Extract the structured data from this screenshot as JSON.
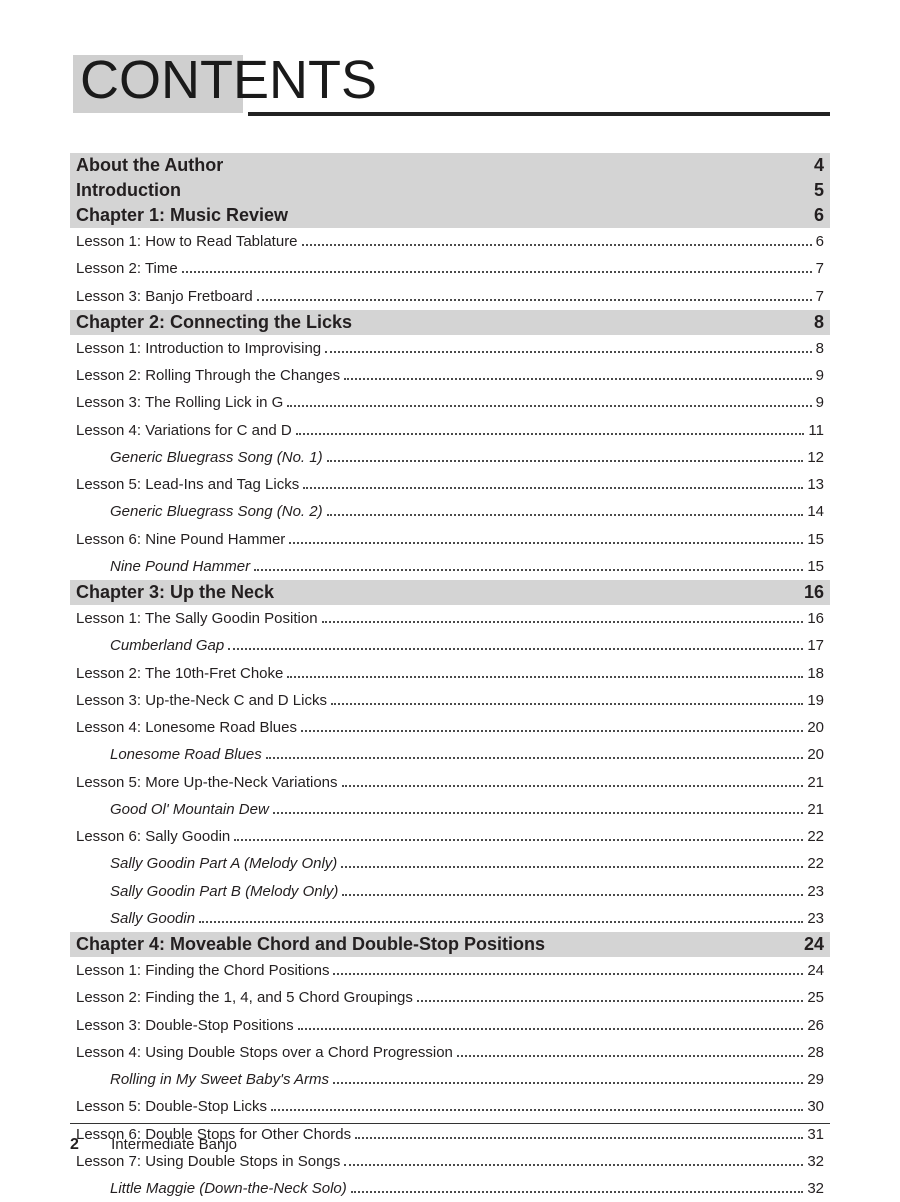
{
  "heading": "CONTENTS",
  "footer": {
    "page_number": "2",
    "book_title": "Intermediate Banjo"
  },
  "toc": [
    {
      "type": "section",
      "label": "About the Author",
      "page": "4"
    },
    {
      "type": "section",
      "label": "Introduction",
      "page": "5"
    },
    {
      "type": "section",
      "label": "Chapter 1: Music Review",
      "page": "6"
    },
    {
      "type": "entry",
      "label": "Lesson 1: How to Read Tablature",
      "page": "6"
    },
    {
      "type": "entry",
      "label": "Lesson 2: Time",
      "page": "7"
    },
    {
      "type": "entry",
      "label": "Lesson 3: Banjo Fretboard",
      "page": "7"
    },
    {
      "type": "section",
      "label": "Chapter 2: Connecting the Licks",
      "page": "8"
    },
    {
      "type": "entry",
      "label": "Lesson 1: Introduction to Improvising",
      "page": "8"
    },
    {
      "type": "entry",
      "label": "Lesson 2: Rolling Through the Changes",
      "page": "9"
    },
    {
      "type": "entry",
      "label": "Lesson 3: The Rolling Lick in G",
      "page": "9"
    },
    {
      "type": "entry",
      "label": "Lesson 4: Variations for C and D",
      "page": "11"
    },
    {
      "type": "sub",
      "label": "Generic Bluegrass Song (No. 1)",
      "page": "12"
    },
    {
      "type": "entry",
      "label": "Lesson 5: Lead-Ins and Tag Licks",
      "page": "13"
    },
    {
      "type": "sub",
      "label": "Generic Bluegrass Song (No. 2)",
      "page": "14"
    },
    {
      "type": "entry",
      "label": "Lesson 6: Nine Pound Hammer",
      "page": "15"
    },
    {
      "type": "sub",
      "label": "Nine Pound Hammer",
      "page": "15"
    },
    {
      "type": "section",
      "label": "Chapter 3: Up the Neck",
      "page": "16"
    },
    {
      "type": "entry",
      "label": "Lesson 1: The Sally Goodin Position",
      "page": "16"
    },
    {
      "type": "sub",
      "label": "Cumberland Gap",
      "page": "17"
    },
    {
      "type": "entry",
      "label": "Lesson 2: The 10th-Fret Choke",
      "page": "18"
    },
    {
      "type": "entry",
      "label": "Lesson 3: Up-the-Neck C and D Licks",
      "page": "19"
    },
    {
      "type": "entry",
      "label": "Lesson 4: Lonesome Road Blues",
      "page": "20"
    },
    {
      "type": "sub",
      "label": "Lonesome Road Blues",
      "page": "20"
    },
    {
      "type": "entry",
      "label": "Lesson 5: More Up-the-Neck Variations",
      "page": "21"
    },
    {
      "type": "sub",
      "label": "Good Ol' Mountain Dew",
      "page": "21"
    },
    {
      "type": "entry",
      "label": "Lesson 6: Sally Goodin",
      "page": "22"
    },
    {
      "type": "sub",
      "label": "Sally Goodin Part A (Melody Only)",
      "page": "22"
    },
    {
      "type": "sub",
      "label": "Sally Goodin Part B (Melody Only)",
      "page": "23"
    },
    {
      "type": "sub",
      "label": "Sally Goodin",
      "page": "23"
    },
    {
      "type": "section",
      "label": "Chapter 4: Moveable Chord and Double-Stop Positions",
      "page": "24"
    },
    {
      "type": "entry",
      "label": "Lesson 1: Finding the Chord Positions",
      "page": "24"
    },
    {
      "type": "entry",
      "label": "Lesson 2: Finding the 1, 4, and 5 Chord Groupings",
      "page": "25"
    },
    {
      "type": "entry",
      "label": "Lesson 3: Double-Stop Positions",
      "page": "26"
    },
    {
      "type": "entry",
      "label": "Lesson 4: Using Double Stops over a Chord Progression",
      "page": "28"
    },
    {
      "type": "sub",
      "label": "Rolling in My Sweet Baby's Arms",
      "page": "29"
    },
    {
      "type": "entry",
      "label": "Lesson 5: Double-Stop Licks",
      "page": "30"
    },
    {
      "type": "entry",
      "label": "Lesson 6: Double Stops for Other Chords",
      "page": "31"
    },
    {
      "type": "entry",
      "label": "Lesson 7: Using Double Stops in Songs",
      "page": "32"
    },
    {
      "type": "sub",
      "label": "Little Maggie (Down-the-Neck Solo)",
      "page": "32"
    }
  ]
}
